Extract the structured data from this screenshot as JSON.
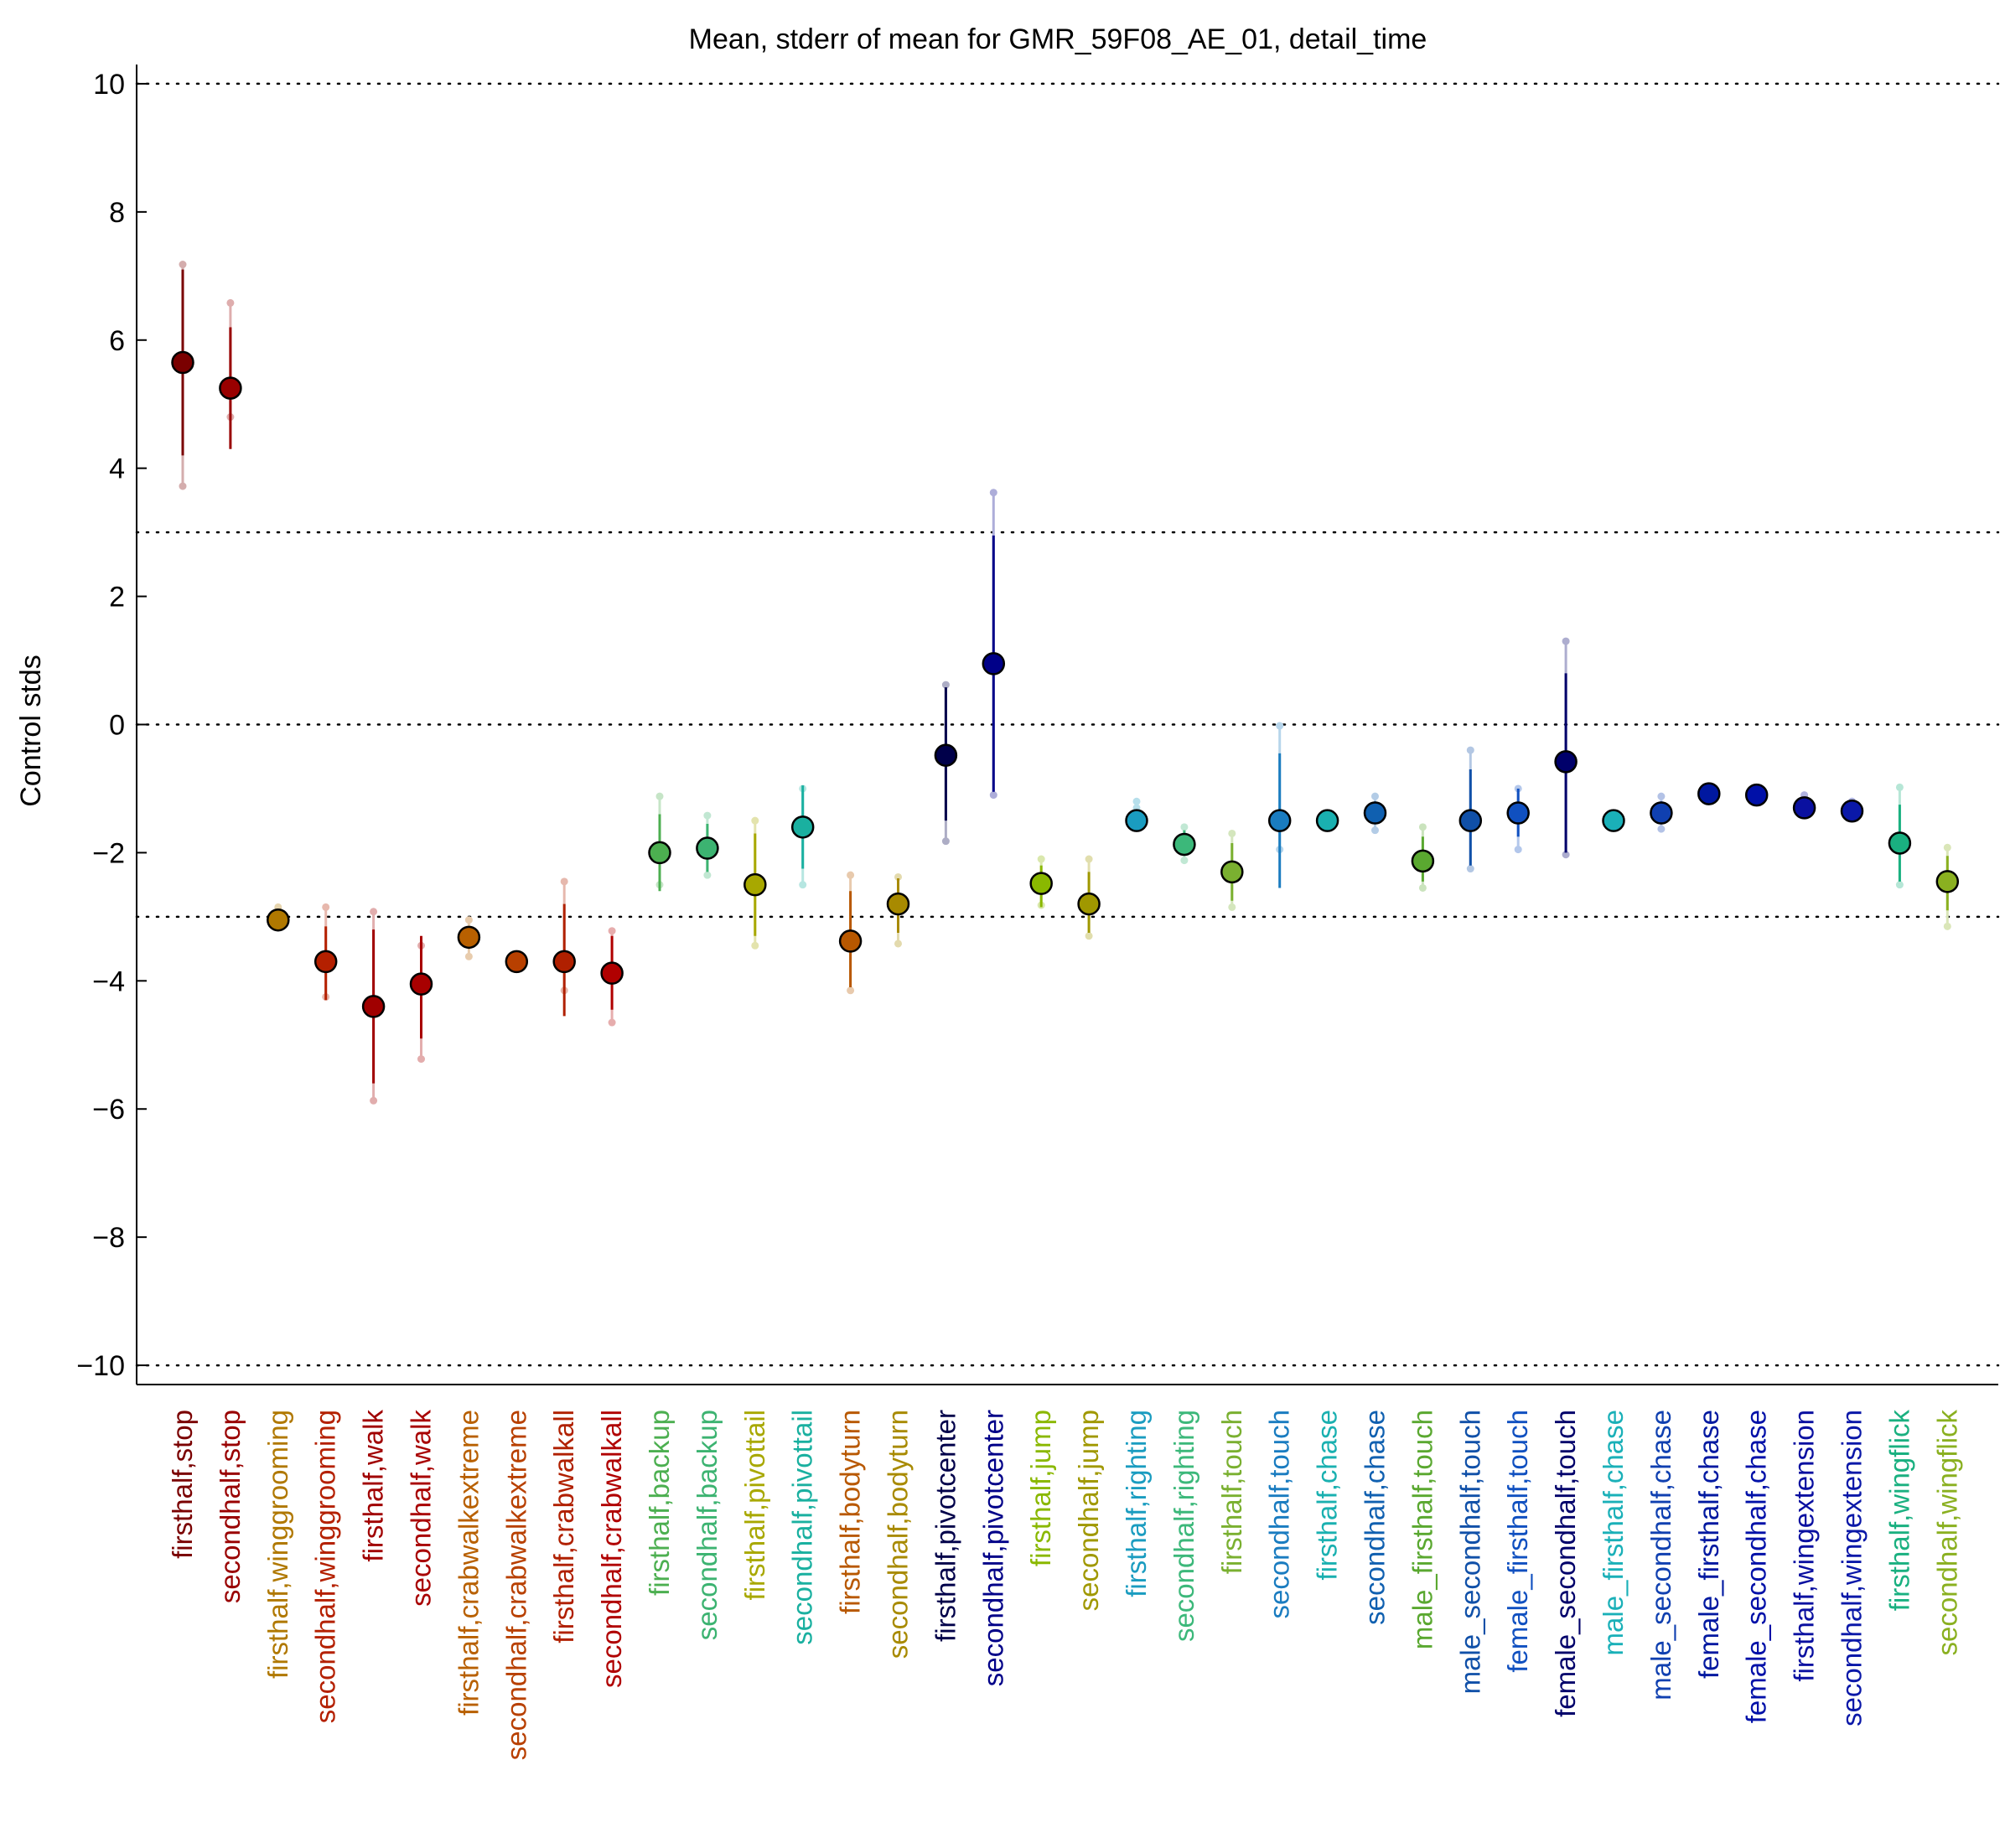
{
  "chart_data": {
    "type": "scatter",
    "title": "Mean, stderr of mean for GMR_59F08_AE_01, detail_time",
    "xlabel": "",
    "ylabel": "Control stds",
    "ylim": [
      -10.3,
      10.3
    ],
    "yticks": [
      10,
      8,
      6,
      4,
      2,
      0,
      -2,
      -4,
      -6,
      -8,
      -10
    ],
    "ytick_labels": [
      "10",
      "8",
      "6",
      "4",
      "2",
      "0",
      "−2",
      "−4",
      "−6",
      "−8",
      "−10"
    ],
    "reference_lines": [
      10,
      3,
      0,
      -3,
      -10
    ],
    "grid": false,
    "legend": "none",
    "categories": [
      "firsthalf,stop",
      "secondhalf,stop",
      "firsthalf,winggrooming",
      "secondhalf,winggrooming",
      "firsthalf,walk",
      "secondhalf,walk",
      "firsthalf,crabwalkextreme",
      "secondhalf,crabwalkextreme",
      "firsthalf,crabwalkall",
      "secondhalf,crabwalkall",
      "firsthalf,backup",
      "secondhalf,backup",
      "firsthalf,pivottail",
      "secondhalf,pivottail",
      "firsthalf,bodyturn",
      "secondhalf,bodyturn",
      "firsthalf,pivotcenter",
      "secondhalf,pivotcenter",
      "firsthalf,jump",
      "secondhalf,jump",
      "firsthalf,righting",
      "secondhalf,righting",
      "firsthalf,touch",
      "secondhalf,touch",
      "firsthalf,chase",
      "secondhalf,chase",
      "male_firsthalf,touch",
      "male_secondhalf,touch",
      "female_firsthalf,touch",
      "female_secondhalf,touch",
      "male_firsthalf,chase",
      "male_secondhalf,chase",
      "female_firsthalf,chase",
      "female_secondhalf,chase",
      "firsthalf,wingextension",
      "secondhalf,wingextension",
      "firsthalf,wingflick",
      "secondhalf,wingflick"
    ],
    "colors": [
      "#7a0000",
      "#990000",
      "#b07800",
      "#b42000",
      "#a00000",
      "#a80000",
      "#b86000",
      "#b84000",
      "#b02000",
      "#b00000",
      "#4caf50",
      "#3cb371",
      "#a8a800",
      "#1ab0a0",
      "#b85800",
      "#a88a00",
      "#00004a",
      "#000088",
      "#8ab800",
      "#a09800",
      "#1a9cc0",
      "#3cb87a",
      "#7ab030",
      "#1a7cc0",
      "#1ab0b0",
      "#1060b0",
      "#5aa830",
      "#1050a8",
      "#1050c0",
      "#00006a",
      "#1ab0b8",
      "#1040b0",
      "#0018a0",
      "#0010a8",
      "#0a10a0",
      "#0a18a8",
      "#1ab080",
      "#8ab020"
    ],
    "values": [
      5.65,
      5.25,
      -3.05,
      -3.7,
      -4.4,
      -4.05,
      -3.32,
      -3.7,
      -3.7,
      -3.88,
      -2.0,
      -1.93,
      -2.5,
      -1.6,
      -3.38,
      -2.8,
      -0.48,
      0.95,
      -2.48,
      -2.8,
      -1.5,
      -1.87,
      -2.3,
      -1.5,
      -1.5,
      -1.38,
      -2.13,
      -1.5,
      -1.38,
      -0.58,
      -1.5,
      -1.38,
      -1.08,
      -1.1,
      -1.3,
      -1.35,
      -1.85,
      -2.45
    ],
    "err_low": [
      4.2,
      4.3,
      -3.05,
      -4.3,
      -5.6,
      -4.9,
      -3.5,
      -3.7,
      -4.55,
      -4.45,
      -2.6,
      -2.3,
      -3.3,
      -2.25,
      -4.1,
      -3.25,
      -1.5,
      -1.05,
      -2.85,
      -3.25,
      -1.6,
      -2.05,
      -2.75,
      -2.55,
      -1.5,
      -1.55,
      -2.45,
      -2.2,
      -1.75,
      -2.0,
      -1.5,
      -1.55,
      -1.08,
      -1.1,
      -1.35,
      -1.45,
      -2.45,
      -2.9
    ],
    "err_high": [
      7.1,
      6.2,
      -3.05,
      -3.15,
      -3.2,
      -3.3,
      -3.15,
      -3.7,
      -2.8,
      -3.3,
      -1.4,
      -1.55,
      -1.7,
      -0.95,
      -2.6,
      -2.4,
      0.58,
      2.95,
      -2.2,
      -2.3,
      -1.35,
      -1.65,
      -1.85,
      -0.45,
      -1.5,
      -1.2,
      -1.75,
      -0.7,
      -1.0,
      0.8,
      -1.5,
      -1.2,
      -1.08,
      -1.1,
      -1.25,
      -1.25,
      -1.25,
      -2.05
    ],
    "extreme_low": [
      3.72,
      4.8,
      -2.9,
      -4.25,
      -5.87,
      -5.22,
      -3.62,
      -3.7,
      -4.15,
      -4.65,
      -2.5,
      -2.35,
      -3.45,
      -2.5,
      -4.15,
      -3.42,
      -1.82,
      -1.1,
      -2.82,
      -3.3,
      -1.3,
      -2.12,
      -2.85,
      -1.95,
      -1.5,
      -1.65,
      -2.55,
      -2.25,
      -1.95,
      -2.03,
      -1.5,
      -1.63,
      -1.08,
      -1.1,
      -1.15,
      -1.2,
      -2.5,
      -3.15
    ],
    "extreme_high": [
      7.18,
      6.58,
      -2.85,
      -2.85,
      -2.92,
      -3.45,
      -3.05,
      -3.7,
      -2.45,
      -3.22,
      -1.12,
      -1.42,
      -1.5,
      -1.0,
      -2.35,
      -2.38,
      0.62,
      3.62,
      -2.1,
      -2.1,
      -1.2,
      -1.6,
      -1.7,
      -0.02,
      -1.5,
      -1.12,
      -1.6,
      -0.4,
      -1.0,
      1.3,
      -1.5,
      -1.12,
      -1.08,
      -1.1,
      -1.1,
      -1.2,
      -0.98,
      -1.92
    ]
  }
}
